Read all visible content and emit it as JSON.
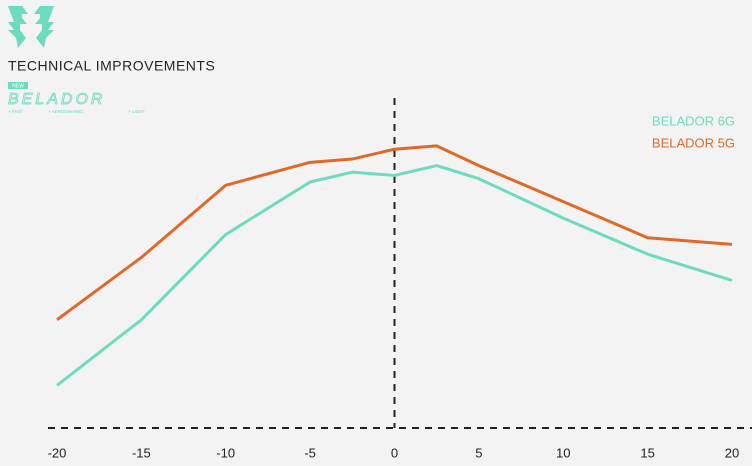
{
  "logo": {
    "badge": "NEW",
    "brand": "BELADOR",
    "features": [
      "+ FAST",
      "+ AERODINAMIC",
      "+ LIGHT"
    ]
  },
  "chart_data": {
    "type": "line",
    "title": "TECHNICAL IMPROVEMENTS",
    "x": [
      -20,
      -15,
      -10,
      -5,
      -2.5,
      0,
      2.5,
      5,
      10,
      15,
      20
    ],
    "series": [
      {
        "name": "BELADOR 6G",
        "color": "#6ddbbd",
        "values": [
          13,
          33,
          59,
          75,
          78,
          77,
          80,
          76,
          64,
          53,
          45
        ]
      },
      {
        "name": "BELADOR 5G",
        "color": "#e0692a",
        "values": [
          33,
          52,
          74,
          81,
          82,
          85,
          86,
          80,
          69,
          58,
          56
        ]
      }
    ],
    "xlim": [
      -20,
      20
    ],
    "xticks": [
      -20,
      -15,
      -10,
      -5,
      0,
      5,
      10,
      15,
      20
    ],
    "ylim": [
      0,
      100
    ],
    "legend": "upper right"
  }
}
